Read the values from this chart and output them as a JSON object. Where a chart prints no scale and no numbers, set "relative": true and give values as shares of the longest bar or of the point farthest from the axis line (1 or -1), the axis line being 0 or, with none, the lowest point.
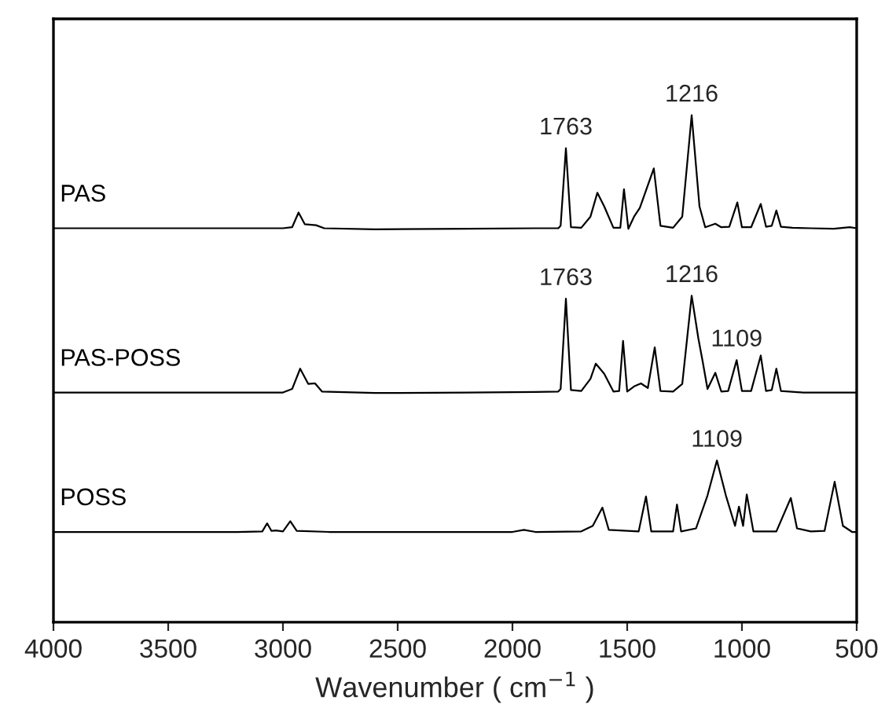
{
  "chart_data": {
    "type": "line",
    "relative": true,
    "xlabel": "Wavenumber ( cm$^{−1}$ )",
    "xlim": [
      4000,
      500
    ],
    "xticks": [
      4000,
      3500,
      3000,
      2500,
      2000,
      1500,
      1000,
      500
    ],
    "tick_labels": "x",
    "grid": false,
    "legend": false,
    "marker": "none",
    "line_style": "solid",
    "series": [
      {
        "name": "PAS",
        "color": "#000000",
        "x": [
          4000,
          3000,
          2960,
          2932,
          2905,
          2856,
          2820,
          2600,
          2200,
          1900,
          1800,
          1790,
          1767,
          1745,
          1700,
          1660,
          1630,
          1600,
          1560,
          1530,
          1514,
          1495,
          1470,
          1445,
          1384,
          1355,
          1300,
          1260,
          1219,
          1185,
          1160,
          1116,
          1090,
          1055,
          1020,
          1000,
          960,
          918,
          895,
          870,
          850,
          830,
          780,
          700,
          600,
          530,
          500
        ],
        "values": [
          0.777,
          0.777,
          0.779,
          0.808,
          0.785,
          0.783,
          0.777,
          0.775,
          0.776,
          0.777,
          0.777,
          0.782,
          0.935,
          0.779,
          0.778,
          0.8,
          0.847,
          0.82,
          0.778,
          0.778,
          0.854,
          0.776,
          0.8,
          0.817,
          0.895,
          0.782,
          0.778,
          0.8,
          1.0,
          0.82,
          0.779,
          0.786,
          0.779,
          0.78,
          0.828,
          0.779,
          0.779,
          0.825,
          0.78,
          0.782,
          0.812,
          0.78,
          0.778,
          0.777,
          0.776,
          0.779,
          0.777
        ]
      },
      {
        "name": "PAS-POSS",
        "color": "#000000",
        "x": [
          4000,
          3000,
          2960,
          2925,
          2890,
          2860,
          2830,
          2600,
          2200,
          1900,
          1800,
          1790,
          1767,
          1745,
          1700,
          1660,
          1637,
          1600,
          1560,
          1535,
          1518,
          1500,
          1470,
          1440,
          1410,
          1380,
          1355,
          1300,
          1260,
          1219,
          1190,
          1171,
          1150,
          1116,
          1090,
          1060,
          1023,
          1000,
          960,
          918,
          895,
          870,
          850,
          830,
          733,
          600,
          500
        ],
        "values": [
          0.453,
          0.453,
          0.46,
          0.5,
          0.47,
          0.471,
          0.455,
          0.452,
          0.453,
          0.454,
          0.455,
          0.46,
          0.638,
          0.458,
          0.456,
          0.48,
          0.51,
          0.49,
          0.455,
          0.456,
          0.555,
          0.455,
          0.465,
          0.471,
          0.462,
          0.542,
          0.456,
          0.455,
          0.47,
          0.644,
          0.56,
          0.514,
          0.46,
          0.492,
          0.455,
          0.456,
          0.517,
          0.456,
          0.456,
          0.526,
          0.456,
          0.458,
          0.5,
          0.456,
          0.453,
          0.453,
          0.453
        ]
      },
      {
        "name": "POSS",
        "color": "#000000",
        "x": [
          4000,
          3200,
          3090,
          3069,
          3050,
          3030,
          3000,
          2968,
          2940,
          2800,
          2400,
          2000,
          1950,
          1900,
          1700,
          1650,
          1608,
          1580,
          1450,
          1418,
          1395,
          1300,
          1283,
          1265,
          1200,
          1150,
          1109,
          1070,
          1030,
          1013,
          995,
          979,
          950,
          850,
          787,
          760,
          700,
          640,
          596,
          560,
          520,
          500
        ],
        "values": [
          0.178,
          0.178,
          0.179,
          0.195,
          0.18,
          0.181,
          0.179,
          0.199,
          0.18,
          0.178,
          0.178,
          0.178,
          0.182,
          0.178,
          0.179,
          0.19,
          0.226,
          0.182,
          0.179,
          0.248,
          0.179,
          0.179,
          0.232,
          0.179,
          0.185,
          0.25,
          0.319,
          0.25,
          0.19,
          0.228,
          0.19,
          0.252,
          0.179,
          0.179,
          0.245,
          0.185,
          0.179,
          0.18,
          0.277,
          0.19,
          0.178,
          0.178
        ]
      }
    ],
    "annotations": [
      {
        "text": "1763",
        "x": 1767,
        "y": 0.935
      },
      {
        "text": "1216",
        "x": 1219,
        "y": 1.0
      },
      {
        "text": "1763",
        "x": 1767,
        "y": 0.638
      },
      {
        "text": "1216",
        "x": 1219,
        "y": 0.644
      },
      {
        "text": "1109",
        "x": 1023,
        "y": 0.517
      },
      {
        "text": "1109",
        "x": 1109,
        "y": 0.319
      }
    ]
  }
}
